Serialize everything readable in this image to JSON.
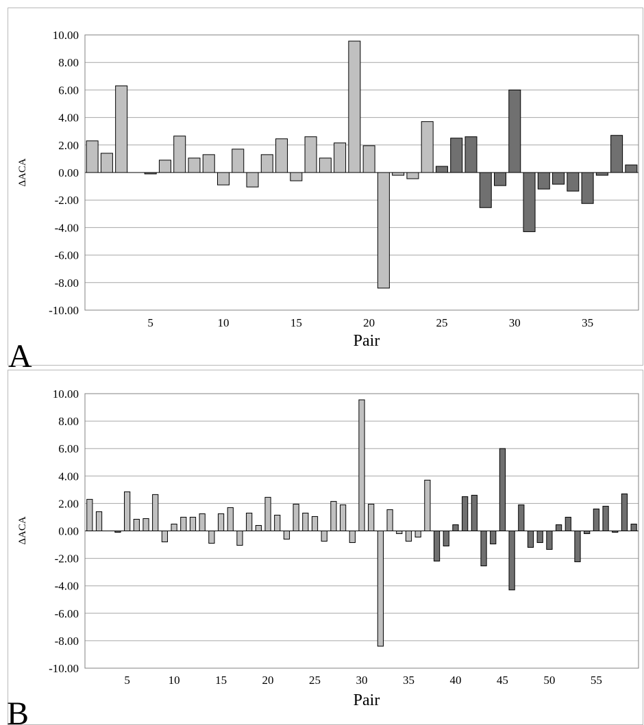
{
  "chart_data": [
    {
      "type": "bar",
      "panel_label": "A",
      "xlabel": "Pair",
      "ylabel": "ΔACA",
      "ylim": [
        -10,
        10
      ],
      "yticks": [
        10,
        8,
        6,
        4,
        2,
        0,
        -2,
        -4,
        -6,
        -8,
        -10
      ],
      "ytick_labels": [
        "10.00",
        "8.00",
        "6.00",
        "4.00",
        "2.00",
        "0.00",
        "-2.00",
        "-4.00",
        "-6.00",
        "-8.00",
        "-10.00"
      ],
      "xticks": [
        5,
        10,
        15,
        20,
        25,
        30,
        35
      ],
      "x_count": 38,
      "grid": true,
      "colors": {
        "light": "#c0c0c0",
        "dark": "#707070"
      },
      "x": [
        1,
        2,
        3,
        4,
        5,
        6,
        7,
        8,
        9,
        10,
        11,
        12,
        13,
        14,
        15,
        16,
        17,
        18,
        19,
        20,
        21,
        22,
        23,
        24,
        25,
        26,
        27,
        28,
        29,
        30,
        31,
        32,
        33,
        34,
        35,
        36,
        37,
        38
      ],
      "values": [
        2.3,
        1.4,
        6.3,
        0,
        -0.1,
        0.9,
        2.65,
        1.05,
        1.3,
        -0.9,
        1.7,
        -1.05,
        1.3,
        2.45,
        -0.6,
        2.6,
        1.05,
        2.15,
        9.55,
        1.95,
        -8.4,
        -0.2,
        -0.45,
        3.7,
        0.45,
        2.5,
        2.6,
        -2.55,
        -0.95,
        6.0,
        -4.3,
        -1.2,
        -0.85,
        -1.35,
        -2.25,
        -0.2,
        2.7,
        0.55
      ],
      "shade": [
        "light",
        "light",
        "light",
        "light",
        "dark",
        "light",
        "light",
        "light",
        "light",
        "light",
        "light",
        "light",
        "light",
        "light",
        "light",
        "light",
        "light",
        "light",
        "light",
        "light",
        "light",
        "light",
        "light",
        "light",
        "dark",
        "dark",
        "dark",
        "dark",
        "dark",
        "dark",
        "dark",
        "dark",
        "dark",
        "dark",
        "dark",
        "dark",
        "dark",
        "dark"
      ]
    },
    {
      "type": "bar",
      "panel_label": "B",
      "xlabel": "Pair",
      "ylabel": "ΔACA",
      "ylim": [
        -10,
        10
      ],
      "yticks": [
        10,
        8,
        6,
        4,
        2,
        0,
        -2,
        -4,
        -6,
        -8,
        -10
      ],
      "ytick_labels": [
        "10.00",
        "8.00",
        "6.00",
        "4.00",
        "2.00",
        "0.00",
        "-2.00",
        "-4.00",
        "-6.00",
        "-8.00",
        "-10.00"
      ],
      "xticks": [
        5,
        10,
        15,
        20,
        25,
        30,
        35,
        40,
        45,
        50,
        55
      ],
      "x_count": 59,
      "grid": true,
      "colors": {
        "light": "#c0c0c0",
        "dark": "#707070"
      },
      "x": [
        1,
        2,
        3,
        4,
        5,
        6,
        7,
        8,
        9,
        10,
        11,
        12,
        13,
        14,
        15,
        16,
        17,
        18,
        19,
        20,
        21,
        22,
        23,
        24,
        25,
        26,
        27,
        28,
        29,
        30,
        31,
        32,
        33,
        34,
        35,
        36,
        37,
        38,
        39,
        40,
        41,
        42,
        43,
        44,
        45,
        46,
        47,
        48,
        49,
        50,
        51,
        52,
        53,
        54,
        55,
        56,
        57,
        58,
        59
      ],
      "values": [
        2.3,
        1.4,
        0,
        -0.1,
        2.85,
        0.85,
        0.9,
        2.65,
        -0.8,
        0.5,
        1.0,
        1.0,
        1.25,
        -0.9,
        1.25,
        1.7,
        -1.05,
        1.3,
        0.4,
        2.45,
        1.15,
        -0.6,
        1.95,
        1.3,
        1.05,
        -0.75,
        2.15,
        1.9,
        -0.85,
        9.55,
        1.95,
        -8.4,
        1.55,
        -0.2,
        -0.75,
        -0.45,
        3.7,
        -2.2,
        -1.1,
        0.45,
        2.5,
        2.6,
        -2.55,
        -0.95,
        6.0,
        -4.3,
        1.9,
        -1.2,
        -0.85,
        -1.35,
        0.45,
        1.0,
        -2.25,
        -0.2,
        1.6,
        1.8,
        -0.1,
        2.7,
        0.5
      ],
      "shade": [
        "light",
        "light",
        "light",
        "dark",
        "light",
        "light",
        "light",
        "light",
        "light",
        "light",
        "light",
        "light",
        "light",
        "light",
        "light",
        "light",
        "light",
        "light",
        "light",
        "light",
        "light",
        "light",
        "light",
        "light",
        "light",
        "light",
        "light",
        "light",
        "light",
        "light",
        "light",
        "light",
        "light",
        "light",
        "light",
        "light",
        "light",
        "dark",
        "dark",
        "dark",
        "dark",
        "dark",
        "dark",
        "dark",
        "dark",
        "dark",
        "dark",
        "dark",
        "dark",
        "dark",
        "dark",
        "dark",
        "dark",
        "dark",
        "dark",
        "dark",
        "dark",
        "dark",
        "dark"
      ]
    }
  ]
}
